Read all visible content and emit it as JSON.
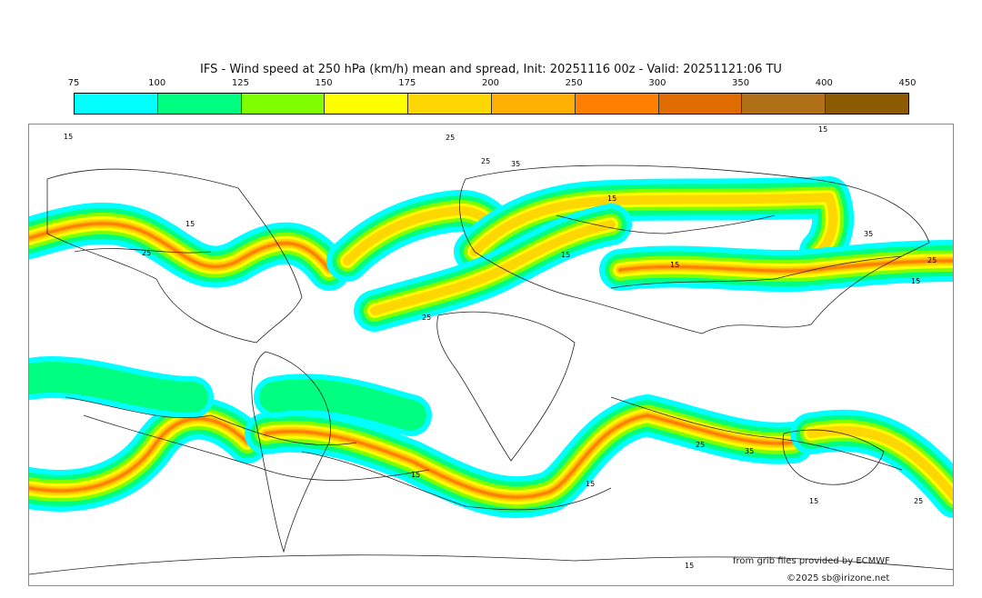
{
  "title": "IFS - Wind speed at 250 hPa (km/h) mean and spread, Init: 20251116 00z - Valid: 20251121:06 TU",
  "colorbar": {
    "ticks": [
      "75",
      "100",
      "125",
      "150",
      "175",
      "200",
      "250",
      "300",
      "350",
      "400",
      "450"
    ],
    "colors": [
      "#00ffff",
      "#00ff80",
      "#80ff00",
      "#ffff00",
      "#ffd700",
      "#ffb000",
      "#ff8000",
      "#e06c00",
      "#b07018",
      "#8c5a00"
    ]
  },
  "contour_labels": [
    "15",
    "25",
    "25",
    "35",
    "15",
    "25",
    "15",
    "15",
    "15",
    "25",
    "15",
    "35",
    "25",
    "15",
    "25",
    "35",
    "15",
    "15",
    "15",
    "25",
    "15"
  ],
  "credits": {
    "source": "from grib files provided by ECMWF",
    "copyright": "©2025 sb@irizone.net"
  }
}
